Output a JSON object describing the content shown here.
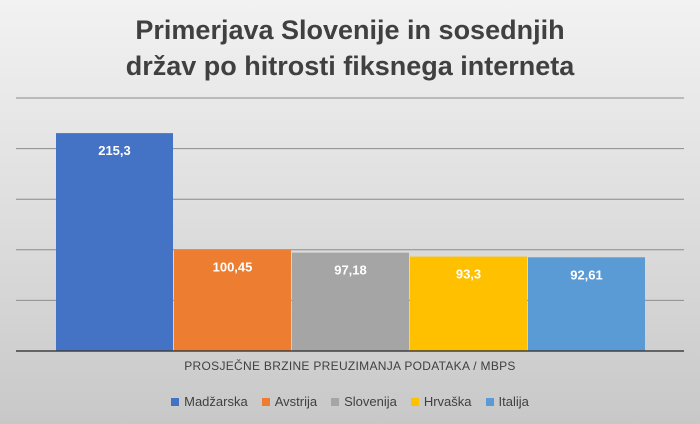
{
  "chart_data": {
    "type": "bar",
    "title": "Primerjava Slovenije in sosednjih držav po hitrosti fiksnega interneta",
    "xlabel": "PROSJEČNE BRZINE PREUZIMANJA PODATAKA / MBPS",
    "ylabel": "",
    "ylim": [
      0,
      250
    ],
    "grid": true,
    "legend_position": "bottom",
    "series": [
      {
        "name": "Madžarska",
        "value": 215.3,
        "label": "215,3",
        "color": "#4472c4"
      },
      {
        "name": "Avstrija",
        "value": 100.45,
        "label": "100,45",
        "color": "#ed7d31"
      },
      {
        "name": "Slovenija",
        "value": 97.18,
        "label": "97,18",
        "color": "#a5a5a5"
      },
      {
        "name": "Hrvaška",
        "value": 93.3,
        "label": "93,3",
        "color": "#ffc000"
      },
      {
        "name": "Italija",
        "value": 92.61,
        "label": "92,61",
        "color": "#5b9bd5"
      }
    ]
  }
}
